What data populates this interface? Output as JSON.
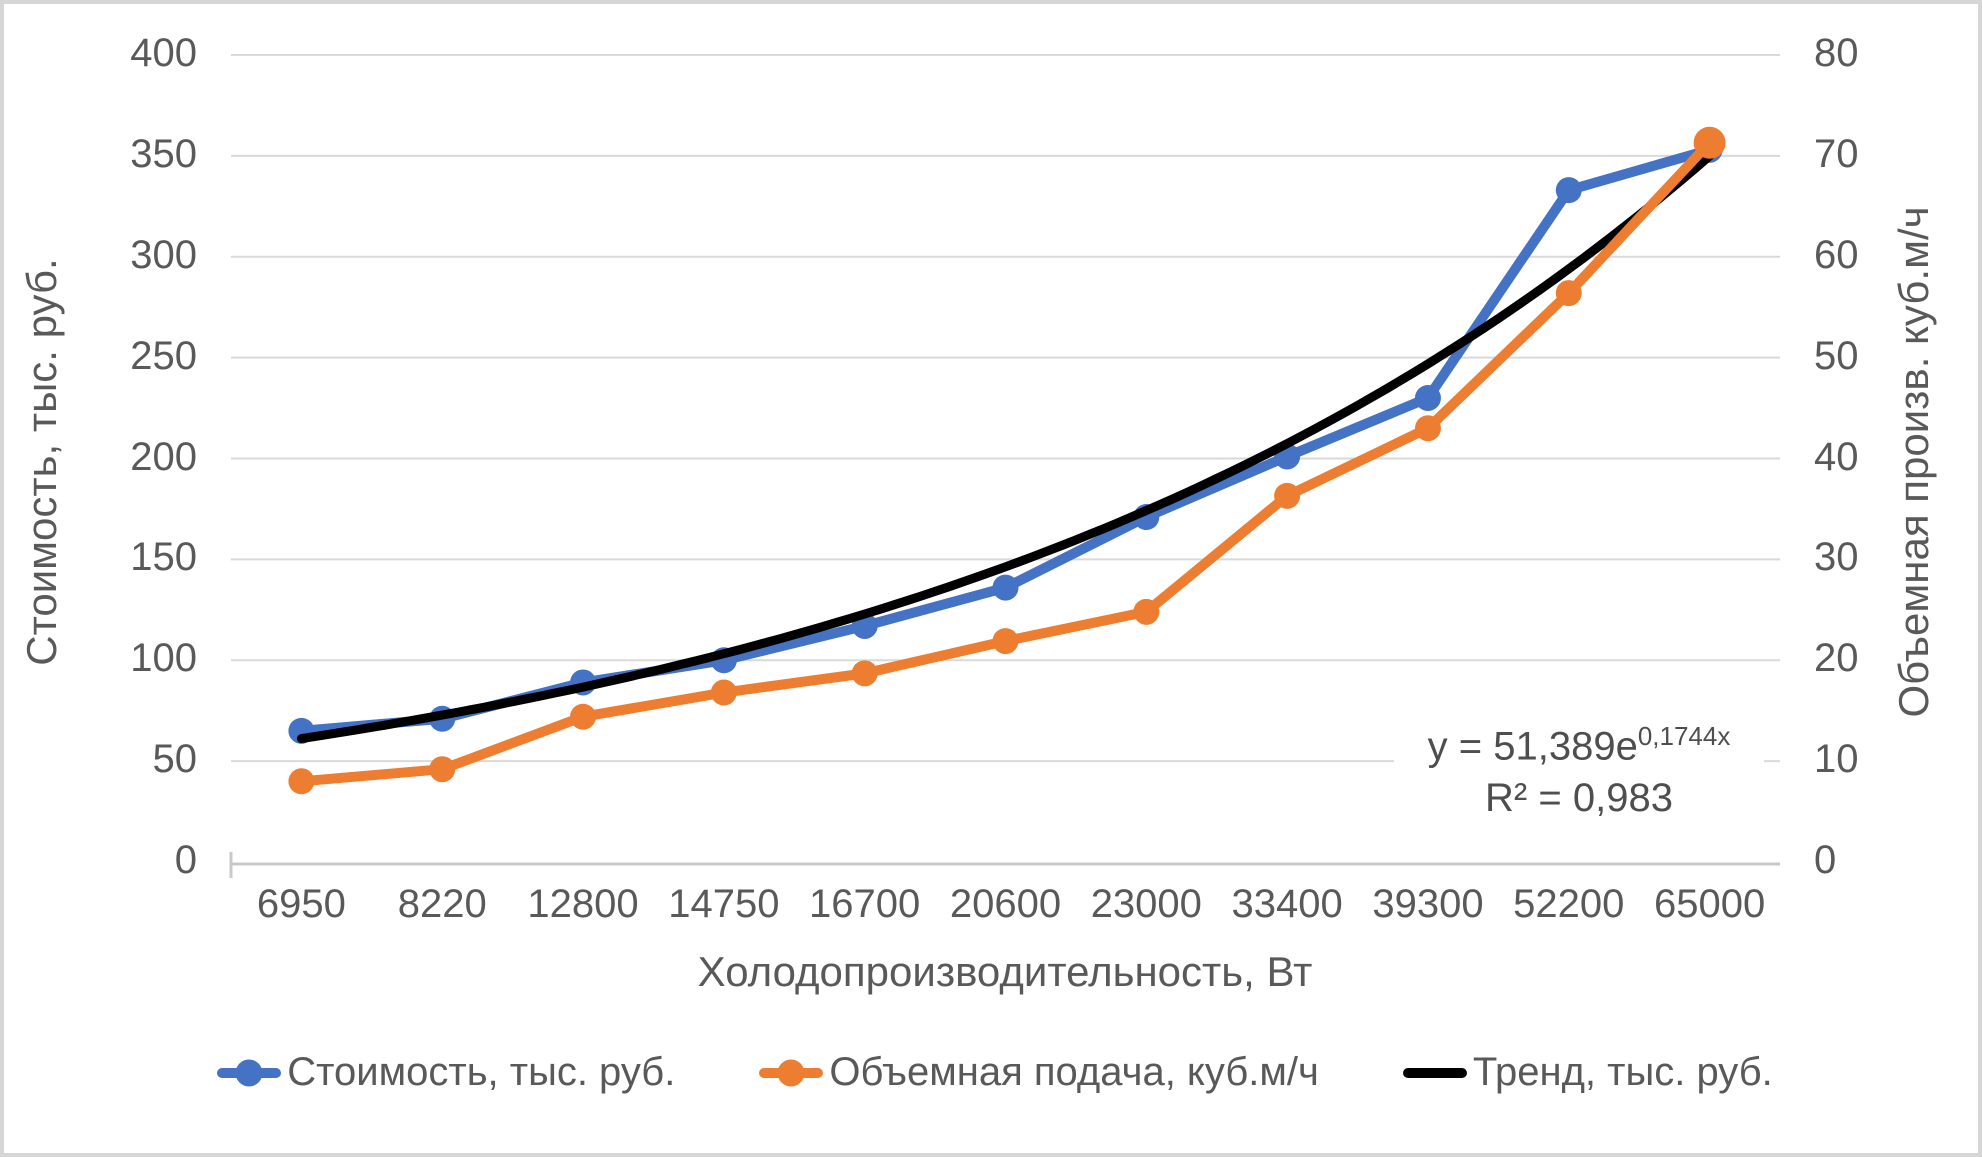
{
  "chart_data": {
    "type": "line",
    "x_axis": {
      "title": "Холодопроизводительность, Вт",
      "categories": [
        "6950",
        "8220",
        "12800",
        "14750",
        "16700",
        "20600",
        "23000",
        "33400",
        "39300",
        "52200",
        "65000"
      ]
    },
    "y_axis_left": {
      "title": "Стоимость, тыс. руб.",
      "min": 0,
      "max": 400,
      "step": 50,
      "ticks": [
        "400",
        "350",
        "300",
        "250",
        "200",
        "150",
        "100",
        "50",
        "0"
      ]
    },
    "y_axis_right": {
      "title": "Объемная произв. куб.м/ч",
      "min": 0,
      "max": 80,
      "step": 10,
      "ticks": [
        "80",
        "70",
        "60",
        "50",
        "40",
        "30",
        "20",
        "10",
        "0"
      ]
    },
    "series": [
      {
        "name": "Стоимость, тыс. руб.",
        "axis": "left",
        "color": "#4472C4",
        "marker": true,
        "values": [
          65,
          71,
          89,
          100,
          117,
          136,
          171,
          201,
          230,
          333,
          353
        ]
      },
      {
        "name": "Объемная подача, куб.м/ч",
        "axis": "right",
        "color": "#ED7D31",
        "marker": true,
        "values": [
          8,
          9.2,
          14.4,
          16.8,
          18.7,
          21.9,
          24.8,
          36.3,
          43,
          56.4,
          71.3
        ]
      }
    ],
    "trend": {
      "name": "Тренд, тыс. руб.",
      "color": "#000000",
      "axis": "left",
      "coefficient": 51.389,
      "exponent_rate": 0.1744
    },
    "grid": {
      "horizontal": true,
      "vertical": false,
      "color": "#D9D9D9",
      "axis_line_color": "#C9C9C9"
    },
    "legend_position": "bottom"
  },
  "annotation": {
    "equation_base": "y = 51,389e",
    "equation_exponent": "0,1744x",
    "r_squared": "R² = 0,983"
  }
}
